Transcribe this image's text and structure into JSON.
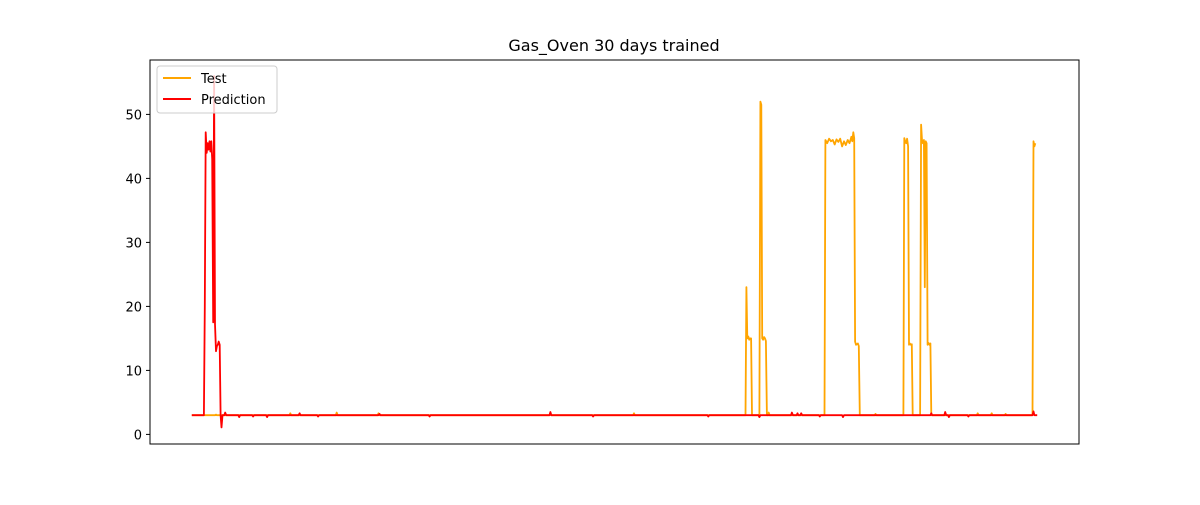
{
  "chart_data": {
    "type": "line",
    "title": "Gas_Oven 30 days trained",
    "xlabel": "",
    "ylabel": "",
    "xlim": [
      0,
      1000
    ],
    "ylim": [
      -1.5,
      58.5
    ],
    "yticks": [
      0,
      10,
      20,
      30,
      40,
      50
    ],
    "xticks": [],
    "grid": false,
    "legend_position": "top-left",
    "series": [
      {
        "name": "Test",
        "color": "#FFA500",
        "points": [
          [
            45,
            3
          ],
          [
            55,
            3
          ],
          [
            62,
            3
          ],
          [
            68,
            3
          ],
          [
            70,
            3
          ],
          [
            71,
            3.1
          ],
          [
            72,
            3
          ],
          [
            150,
            3
          ],
          [
            151,
            3.3
          ],
          [
            152,
            3
          ],
          [
            200,
            3
          ],
          [
            201,
            3.4
          ],
          [
            202,
            3
          ],
          [
            245,
            3
          ],
          [
            246,
            3.3
          ],
          [
            247,
            3
          ],
          [
            430,
            3
          ],
          [
            431,
            3.3
          ],
          [
            432,
            3
          ],
          [
            520,
            3
          ],
          [
            521,
            3.3
          ],
          [
            522,
            3
          ],
          [
            641,
            3
          ],
          [
            642,
            23
          ],
          [
            643,
            15
          ],
          [
            644,
            15.3
          ],
          [
            645,
            14.8
          ],
          [
            646,
            15
          ],
          [
            647,
            15
          ],
          [
            648,
            3
          ],
          [
            656,
            3
          ],
          [
            657,
            52
          ],
          [
            658,
            51.5
          ],
          [
            659,
            15
          ],
          [
            660,
            14.8
          ],
          [
            661,
            15.2
          ],
          [
            662,
            15
          ],
          [
            663,
            14.6
          ],
          [
            664,
            3
          ],
          [
            665,
            3
          ],
          [
            666,
            3.4
          ],
          [
            667,
            3
          ],
          [
            725,
            3
          ],
          [
            726,
            3
          ],
          [
            727,
            46
          ],
          [
            729,
            45.5
          ],
          [
            731,
            46.2
          ],
          [
            733,
            45.8
          ],
          [
            735,
            46
          ],
          [
            737,
            45.3
          ],
          [
            739,
            46.1
          ],
          [
            741,
            45.7
          ],
          [
            743,
            46.2
          ],
          [
            745,
            45
          ],
          [
            747,
            45.8
          ],
          [
            749,
            45.2
          ],
          [
            751,
            46
          ],
          [
            753,
            45.5
          ],
          [
            755,
            46.5
          ],
          [
            756,
            45.8
          ],
          [
            757,
            47.2
          ],
          [
            758,
            46.3
          ],
          [
            759,
            14.5
          ],
          [
            760,
            14
          ],
          [
            762,
            14.2
          ],
          [
            763,
            13.8
          ],
          [
            764,
            3
          ],
          [
            780,
            3
          ],
          [
            781,
            3.2
          ],
          [
            782,
            3
          ],
          [
            811,
            3
          ],
          [
            812,
            46.3
          ],
          [
            813,
            45.7
          ],
          [
            814,
            45.5
          ],
          [
            815,
            46.2
          ],
          [
            816,
            45
          ],
          [
            817,
            14
          ],
          [
            818,
            14.2
          ],
          [
            819,
            14
          ],
          [
            820,
            14.1
          ],
          [
            821,
            3
          ],
          [
            829,
            3
          ],
          [
            830,
            48.4
          ],
          [
            831,
            46
          ],
          [
            832,
            45.5
          ],
          [
            833,
            46
          ],
          [
            834,
            23
          ],
          [
            835,
            45.8
          ],
          [
            836,
            45.5
          ],
          [
            837,
            14
          ],
          [
            838,
            14.3
          ],
          [
            839,
            14
          ],
          [
            840,
            14.2
          ],
          [
            841,
            3
          ],
          [
            890,
            3
          ],
          [
            891,
            3.3
          ],
          [
            892,
            3
          ],
          [
            905,
            3
          ],
          [
            906,
            3.3
          ],
          [
            907,
            3
          ],
          [
            920,
            3
          ],
          [
            921,
            3.2
          ],
          [
            922,
            3
          ],
          [
            950,
            3
          ],
          [
            951,
            45.8
          ],
          [
            952,
            45
          ],
          [
            953,
            45.5
          ]
        ]
      },
      {
        "name": "Prediction",
        "color": "#FF0000",
        "points": [
          [
            45,
            3
          ],
          [
            55,
            3
          ],
          [
            58,
            3
          ],
          [
            59,
            20
          ],
          [
            60,
            47.2
          ],
          [
            61,
            44
          ],
          [
            62,
            45.5
          ],
          [
            63,
            44.5
          ],
          [
            64,
            45.8
          ],
          [
            65,
            44.2
          ],
          [
            66,
            45.8
          ],
          [
            67,
            43
          ],
          [
            68,
            17.5
          ],
          [
            69,
            56
          ],
          [
            70,
            17.2
          ],
          [
            71,
            13
          ],
          [
            72,
            13.8
          ],
          [
            73,
            14
          ],
          [
            74,
            14.5
          ],
          [
            75,
            14
          ],
          [
            76,
            3
          ],
          [
            77,
            1.1
          ],
          [
            78,
            3
          ],
          [
            80,
            3
          ],
          [
            81,
            3.4
          ],
          [
            82,
            3
          ],
          [
            95,
            3
          ],
          [
            96,
            2.7
          ],
          [
            97,
            3
          ],
          [
            110,
            3
          ],
          [
            111,
            2.8
          ],
          [
            112,
            3
          ],
          [
            125,
            3
          ],
          [
            126,
            2.7
          ],
          [
            127,
            3
          ],
          [
            160,
            3
          ],
          [
            161,
            3.3
          ],
          [
            162,
            3
          ],
          [
            180,
            3
          ],
          [
            181,
            2.8
          ],
          [
            182,
            3
          ],
          [
            246,
            3
          ],
          [
            247,
            3.2
          ],
          [
            248,
            3
          ],
          [
            300,
            3
          ],
          [
            301,
            2.8
          ],
          [
            302,
            3
          ],
          [
            430,
            3
          ],
          [
            431,
            3.5
          ],
          [
            432,
            3
          ],
          [
            476,
            3
          ],
          [
            477,
            2.8
          ],
          [
            478,
            3
          ],
          [
            600,
            3
          ],
          [
            601,
            2.8
          ],
          [
            602,
            3
          ],
          [
            655,
            3
          ],
          [
            656,
            2.7
          ],
          [
            657,
            3
          ],
          [
            690,
            3
          ],
          [
            691,
            3.4
          ],
          [
            692,
            3
          ],
          [
            696,
            3
          ],
          [
            697,
            3.3
          ],
          [
            698,
            3
          ],
          [
            700,
            3
          ],
          [
            701,
            3.3
          ],
          [
            702,
            3
          ],
          [
            720,
            3
          ],
          [
            721,
            2.8
          ],
          [
            722,
            3
          ],
          [
            745,
            3
          ],
          [
            746,
            2.7
          ],
          [
            747,
            3
          ],
          [
            840,
            3
          ],
          [
            841,
            3.3
          ],
          [
            842,
            3
          ],
          [
            855,
            3
          ],
          [
            856,
            3.5
          ],
          [
            857,
            3
          ],
          [
            859,
            3
          ],
          [
            860,
            2.7
          ],
          [
            861,
            3
          ],
          [
            880,
            3
          ],
          [
            881,
            2.8
          ],
          [
            882,
            3
          ],
          [
            950,
            3
          ],
          [
            951,
            3.6
          ],
          [
            952,
            3
          ],
          [
            955,
            3
          ]
        ]
      }
    ]
  }
}
